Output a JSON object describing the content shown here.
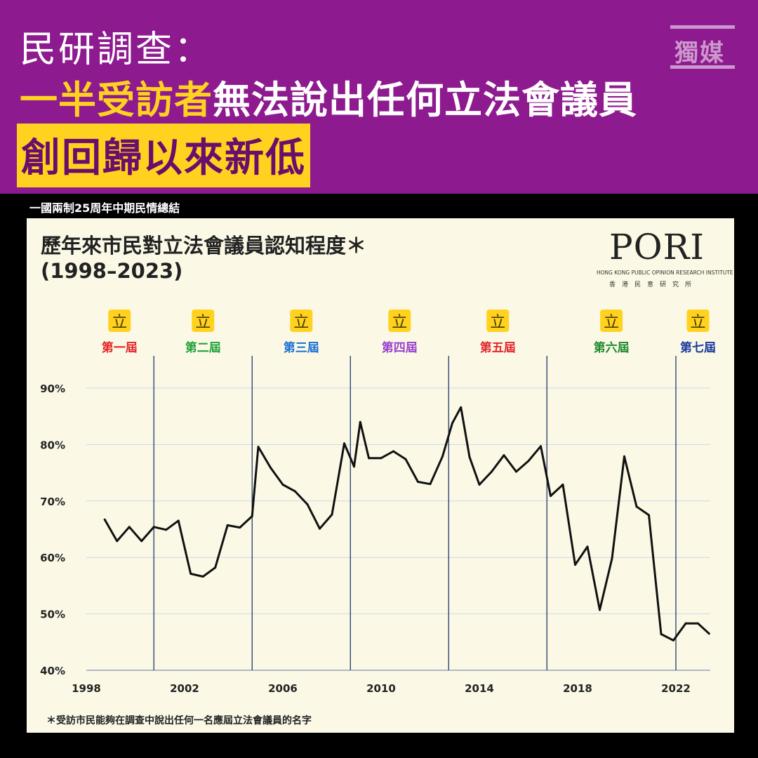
{
  "header": {
    "line1": "民研調查：",
    "line2_accent": "一半受訪者",
    "line2_rest": "無法說出任何立法會議員",
    "line3": "創回歸以來新低",
    "watermark": "獨媒"
  },
  "subtitle": "一國兩制25周年中期民情總結",
  "publisher": {
    "name": "PORI",
    "en": "HONG KONG PUBLIC OPINION RESEARCH INSTITUTE",
    "zh": "香港民意研究所"
  },
  "footnote": "＊受訪市民能夠在調查中說出任何一名應屆立法會議員的名字",
  "colors": {
    "header_bg": "#8e1a8f",
    "accent_yellow": "#ffd21f",
    "card_bg": "#fbf9e6",
    "line": "#111111",
    "divider": "#1f3a6b",
    "term_colors": [
      "#e3262b",
      "#22a33a",
      "#1a6fd1",
      "#9b3fcf",
      "#e3262b",
      "#1f8a2e",
      "#1a3a9e"
    ]
  },
  "chart_data": {
    "type": "line",
    "title": "歷年來市民對立法會議員認知程度＊",
    "subtitle": "(1998–2023)",
    "xlabel": "",
    "ylabel": "",
    "xlim": [
      1998,
      2023.4
    ],
    "ylim": [
      40,
      90
    ],
    "x_ticks": [
      1998,
      2002,
      2006,
      2010,
      2014,
      2018,
      2022
    ],
    "y_ticks": [
      40,
      50,
      60,
      70,
      80,
      90
    ],
    "y_tick_labels": [
      "40%",
      "50%",
      "60%",
      "70%",
      "80%",
      "90%"
    ],
    "grid": "horizontal",
    "terms": [
      {
        "label": "第一屆",
        "start": 1998,
        "icon": "legco-icon"
      },
      {
        "label": "第二屆",
        "start": 2000.75,
        "icon": "legco-icon"
      },
      {
        "label": "第三屆",
        "start": 2004.75,
        "icon": "legco-icon"
      },
      {
        "label": "第四屆",
        "start": 2008.75,
        "icon": "legco-icon"
      },
      {
        "label": "第五屆",
        "start": 2012.75,
        "icon": "legco-icon"
      },
      {
        "label": "第六屆",
        "start": 2016.75,
        "icon": "legco-icon"
      },
      {
        "label": "第七屆",
        "start": 2022,
        "icon": "legco-icon"
      }
    ],
    "icon_char": "立",
    "series": [
      {
        "x": [
          1998.75,
          1999.25,
          1999.75,
          2000.25,
          2000.75,
          2001.25,
          2001.75,
          2002.25,
          2002.75,
          2003.25,
          2003.75,
          2004.25,
          2004.75,
          2005.0,
          2005.5,
          2006.0,
          2006.5,
          2007.0,
          2007.5,
          2008.0,
          2008.5,
          2008.9,
          2009.15,
          2009.5,
          2010.0,
          2010.5,
          2011.0,
          2011.5,
          2012.0,
          2012.5,
          2012.9,
          2013.25,
          2013.6,
          2014.0,
          2014.5,
          2015.0,
          2015.5,
          2016.0,
          2016.5,
          2016.9,
          2017.4,
          2017.9,
          2018.4,
          2018.9,
          2019.4,
          2019.9,
          2020.4,
          2020.9,
          2021.4,
          2021.9,
          2022.4,
          2022.9,
          2023.35
        ],
        "values": [
          66.7,
          62.9,
          65.4,
          62.9,
          65.4,
          64.9,
          66.5,
          57.1,
          56.6,
          58.2,
          65.7,
          65.3,
          67.3,
          79.6,
          75.9,
          72.9,
          71.7,
          69.4,
          65.1,
          67.6,
          80.2,
          76.1,
          84.0,
          77.6,
          77.6,
          78.8,
          77.4,
          73.4,
          73.0,
          77.9,
          83.8,
          86.6,
          77.8,
          72.9,
          75.2,
          78.1,
          75.2,
          77.1,
          79.7,
          70.9,
          72.9,
          58.7,
          61.9,
          50.7,
          59.8,
          77.9,
          69.0,
          67.5,
          46.4,
          45.3,
          48.3,
          48.3,
          46.5
        ]
      }
    ]
  }
}
